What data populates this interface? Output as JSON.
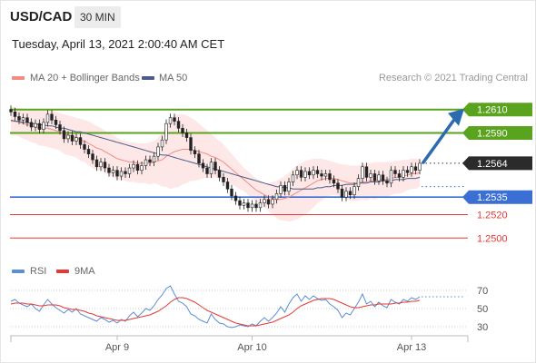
{
  "header": {
    "pair": "USD/CAD",
    "timeframe": "30 MIN",
    "datetime": "Tuesday, April 13, 2021 2:00:40 AM CET"
  },
  "legend": {
    "ma": "MA 20 + Bollinger Bands",
    "ma50": "MA 50",
    "rsi": "RSI",
    "rsi_ma": "9MA"
  },
  "credit": "Research © 2021 Trading Central",
  "colors": {
    "resistance": "#5aa31e",
    "support": "#3b6fd4",
    "price_box": "#2b2b2b",
    "minor_level": "#e53935",
    "arrow": "#2b6cb0",
    "ma20": "#f28b82",
    "ma50": "#4a5d8a",
    "rsi": "#5b8ed8",
    "rsi_ma": "#e53935"
  },
  "chart_data": {
    "type": "line",
    "ylim": [
      1.248,
      1.263
    ],
    "levels": [
      {
        "label": "1.2610",
        "value": 1.261,
        "kind": "resistance"
      },
      {
        "label": "1.2590",
        "value": 1.259,
        "kind": "resistance"
      },
      {
        "label": "1.2564",
        "value": 1.2564,
        "kind": "price"
      },
      {
        "label": "1.2535",
        "value": 1.2535,
        "kind": "support"
      },
      {
        "label": "1.2520",
        "value": 1.252,
        "kind": "minor"
      },
      {
        "label": "1.2500",
        "value": 1.25,
        "kind": "minor"
      }
    ],
    "x_labels": [
      {
        "label": "Apr 9",
        "i": 26
      },
      {
        "label": "Apr 10",
        "i": 59
      },
      {
        "label": "Apr 13",
        "i": 98
      }
    ],
    "price": [
      1.2608,
      1.2604,
      1.2601,
      1.2603,
      1.2599,
      1.2595,
      1.2598,
      1.2593,
      1.2599,
      1.2606,
      1.2601,
      1.2597,
      1.2592,
      1.2585,
      1.2588,
      1.2583,
      1.2586,
      1.258,
      1.2576,
      1.2572,
      1.2567,
      1.2561,
      1.2565,
      1.256,
      1.2556,
      1.2558,
      1.2553,
      1.2557,
      1.2555,
      1.256,
      1.2563,
      1.2558,
      1.2562,
      1.2567,
      1.2565,
      1.257,
      1.2578,
      1.2584,
      1.2598,
      1.2603,
      1.26,
      1.2594,
      1.259,
      1.2586,
      1.2575,
      1.2572,
      1.2564,
      1.256,
      1.2555,
      1.2565,
      1.2558,
      1.2552,
      1.2548,
      1.2542,
      1.2536,
      1.2532,
      1.2528,
      1.253,
      1.2526,
      1.2529,
      1.2526,
      1.253,
      1.2533,
      1.2529,
      1.2533,
      1.2538,
      1.2545,
      1.254,
      1.2548,
      1.2554,
      1.2558,
      1.2552,
      1.2557,
      1.2554,
      1.2558,
      1.2555,
      1.2553,
      1.2555,
      1.255,
      1.2547,
      1.2542,
      1.2535,
      1.254,
      1.2537,
      1.2544,
      1.2551,
      1.2561,
      1.2552,
      1.2555,
      1.2549,
      1.2554,
      1.2549,
      1.2547,
      1.2558,
      1.2555,
      1.2552,
      1.2558,
      1.2556,
      1.2561,
      1.2558,
      1.2564
    ],
    "ma20": [
      1.26,
      1.26,
      1.2599,
      1.2598,
      1.2597,
      1.2596,
      1.2595,
      1.2594,
      1.2594,
      1.2594,
      1.2593,
      1.2592,
      1.2591,
      1.2589,
      1.2588,
      1.2587,
      1.2586,
      1.2584,
      1.2583,
      1.2581,
      1.2579,
      1.2577,
      1.2576,
      1.2574,
      1.2572,
      1.257,
      1.2568,
      1.2567,
      1.2566,
      1.2565,
      1.2565,
      1.2564,
      1.2564,
      1.2564,
      1.2564,
      1.2565,
      1.2566,
      1.2567,
      1.257,
      1.2572,
      1.2574,
      1.2575,
      1.2576,
      1.2576,
      1.2576,
      1.2575,
      1.2574,
      1.2573,
      1.2572,
      1.257,
      1.2569,
      1.2567,
      1.2565,
      1.2562,
      1.2559,
      1.2556,
      1.2553,
      1.255,
      1.2547,
      1.2544,
      1.2541,
      1.2539,
      1.2537,
      1.2535,
      1.2534,
      1.2533,
      1.2533,
      1.2534,
      1.2535,
      1.2537,
      1.2539,
      1.2541,
      1.2543,
      1.2545,
      1.2547,
      1.2549,
      1.255,
      1.2551,
      1.2551,
      1.2551,
      1.255,
      1.2549,
      1.2548,
      1.2547,
      1.2547,
      1.2547,
      1.2548,
      1.2548,
      1.2549,
      1.2549,
      1.255,
      1.255,
      1.255,
      1.2551,
      1.2552,
      1.2552,
      1.2553,
      1.2554,
      1.2555,
      1.2555,
      1.2556
    ],
    "bb_upper": [
      1.2612,
      1.2612,
      1.2611,
      1.2611,
      1.261,
      1.261,
      1.2609,
      1.2609,
      1.2609,
      1.261,
      1.2609,
      1.2608,
      1.2607,
      1.2606,
      1.2605,
      1.2604,
      1.2603,
      1.2602,
      1.2601,
      1.26,
      1.2598,
      1.2596,
      1.2594,
      1.2592,
      1.259,
      1.2588,
      1.2586,
      1.2584,
      1.2583,
      1.2582,
      1.2582,
      1.2581,
      1.2581,
      1.2581,
      1.2582,
      1.2583,
      1.2586,
      1.259,
      1.2596,
      1.2602,
      1.2605,
      1.2606,
      1.2606,
      1.2605,
      1.2603,
      1.2601,
      1.2598,
      1.2595,
      1.2592,
      1.2589,
      1.2586,
      1.2583,
      1.258,
      1.2576,
      1.2572,
      1.2568,
      1.2564,
      1.256,
      1.2557,
      1.2554,
      1.2551,
      1.2549,
      1.2547,
      1.2547,
      1.2548,
      1.2549,
      1.2551,
      1.2553,
      1.2556,
      1.2559,
      1.2562,
      1.2564,
      1.2566,
      1.2567,
      1.2568,
      1.2568,
      1.2568,
      1.2567,
      1.2566,
      1.2565,
      1.2564,
      1.2563,
      1.2563,
      1.2562,
      1.2562,
      1.2562,
      1.2563,
      1.2564,
      1.2564,
      1.2565,
      1.2565,
      1.2565,
      1.2565,
      1.2565,
      1.2566,
      1.2566,
      1.2567,
      1.2567,
      1.2568,
      1.2568,
      1.2568
    ],
    "bb_lower": [
      1.2588,
      1.2588,
      1.2587,
      1.2585,
      1.2584,
      1.2582,
      1.2581,
      1.2579,
      1.2579,
      1.2578,
      1.2577,
      1.2576,
      1.2575,
      1.2572,
      1.2571,
      1.257,
      1.2569,
      1.2566,
      1.2565,
      1.2562,
      1.256,
      1.2558,
      1.2558,
      1.2556,
      1.2554,
      1.2552,
      1.255,
      1.255,
      1.2549,
      1.2548,
      1.2548,
      1.2547,
      1.2547,
      1.2547,
      1.2546,
      1.2547,
      1.2546,
      1.2544,
      1.2544,
      1.2542,
      1.2543,
      1.2544,
      1.2546,
      1.2547,
      1.2549,
      1.2549,
      1.255,
      1.2551,
      1.2552,
      1.2551,
      1.2552,
      1.2551,
      1.255,
      1.2548,
      1.2546,
      1.2544,
      1.2542,
      1.254,
      1.2537,
      1.2534,
      1.2531,
      1.2529,
      1.2527,
      1.2523,
      1.252,
      1.2517,
      1.2515,
      1.2515,
      1.2514,
      1.2515,
      1.2516,
      1.2518,
      1.252,
      1.2523,
      1.2526,
      1.253,
      1.2532,
      1.2535,
      1.2536,
      1.2537,
      1.2536,
      1.2535,
      1.2533,
      1.2532,
      1.2532,
      1.2532,
      1.2533,
      1.2532,
      1.2534,
      1.2533,
      1.2535,
      1.2535,
      1.2535,
      1.2537,
      1.2538,
      1.2538,
      1.2539,
      1.2541,
      1.2542,
      1.2542,
      1.2544
    ],
    "ma50": [
      1.2601,
      1.26,
      1.26,
      1.2599,
      1.2599,
      1.2598,
      1.2598,
      1.2597,
      1.2597,
      1.2596,
      1.2596,
      1.2595,
      1.2594,
      1.2594,
      1.2593,
      1.2592,
      1.2591,
      1.2591,
      1.259,
      1.2589,
      1.2588,
      1.2587,
      1.2586,
      1.2585,
      1.2584,
      1.2583,
      1.2582,
      1.2581,
      1.258,
      1.2579,
      1.2578,
      1.2577,
      1.2576,
      1.2575,
      1.2574,
      1.2573,
      1.2572,
      1.2571,
      1.2571,
      1.257,
      1.2569,
      1.2568,
      1.2567,
      1.2566,
      1.2565,
      1.2564,
      1.2563,
      1.2562,
      1.2561,
      1.256,
      1.2559,
      1.2558,
      1.2557,
      1.2556,
      1.2555,
      1.2554,
      1.2553,
      1.2552,
      1.2551,
      1.255,
      1.2549,
      1.2548,
      1.2547,
      1.2546,
      1.2545,
      1.2544,
      1.2544,
      1.2543,
      1.2543,
      1.2542,
      1.2542,
      1.2542,
      1.2542,
      1.2542,
      1.2542,
      1.2543,
      1.2543,
      1.2544,
      1.2544,
      1.2545,
      1.2545,
      1.2545,
      1.2546,
      1.2546,
      1.2546,
      1.2547,
      1.2547,
      1.2547,
      1.2548,
      1.2548,
      1.2548,
      1.2549,
      1.2549,
      1.2549,
      1.255,
      1.255,
      1.255,
      1.2551,
      1.2551,
      1.2551,
      1.2552
    ],
    "rsi_levels": [
      {
        "label": "70",
        "value": 70
      },
      {
        "label": "50",
        "value": 50
      },
      {
        "label": "30",
        "value": 30
      }
    ],
    "rsi_ylim": [
      22,
      78
    ],
    "rsi": [
      58,
      60,
      56,
      54,
      52,
      55,
      50,
      47,
      54,
      60,
      55,
      51,
      48,
      45,
      49,
      46,
      50,
      44,
      42,
      40,
      38,
      36,
      40,
      38,
      35,
      37,
      34,
      38,
      36,
      42,
      46,
      41,
      45,
      50,
      48,
      53,
      60,
      65,
      72,
      75,
      66,
      58,
      56,
      52,
      44,
      42,
      38,
      36,
      34,
      44,
      38,
      34,
      33,
      30,
      29,
      30,
      32,
      31,
      30,
      33,
      31,
      36,
      40,
      36,
      40,
      45,
      52,
      46,
      55,
      62,
      66,
      58,
      64,
      60,
      64,
      61,
      59,
      60,
      55,
      52,
      48,
      40,
      45,
      43,
      50,
      57,
      66,
      55,
      58,
      52,
      57,
      53,
      51,
      60,
      57,
      55,
      60,
      58,
      62,
      60,
      63
    ],
    "rsi_ma": [
      55,
      56,
      56,
      56,
      55,
      55,
      54,
      53,
      53,
      54,
      54,
      54,
      53,
      51,
      50,
      49,
      49,
      48,
      47,
      45,
      44,
      42,
      41,
      40,
      39,
      38,
      37,
      37,
      37,
      38,
      39,
      40,
      41,
      42,
      43,
      45,
      47,
      50,
      53,
      57,
      60,
      62,
      62,
      61,
      59,
      57,
      54,
      51,
      48,
      46,
      44,
      42,
      40,
      38,
      36,
      34,
      33,
      32,
      31,
      31,
      31,
      32,
      33,
      34,
      35,
      37,
      39,
      41,
      43,
      46,
      50,
      53,
      55,
      57,
      59,
      60,
      61,
      61,
      61,
      60,
      58,
      56,
      54,
      52,
      51,
      51,
      52,
      53,
      54,
      54,
      55,
      55,
      55,
      55,
      56,
      56,
      57,
      57,
      58,
      58,
      59
    ]
  }
}
